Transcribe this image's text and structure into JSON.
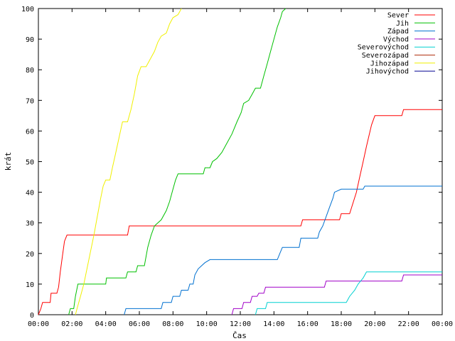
{
  "chart_data": {
    "type": "line",
    "title": "",
    "xlabel": "Čas",
    "ylabel": "krát",
    "xlim": [
      0,
      24
    ],
    "ylim": [
      0,
      100
    ],
    "x_ticks": [
      "00:00",
      "02:00",
      "04:00",
      "06:00",
      "08:00",
      "10:00",
      "12:00",
      "14:00",
      "16:00",
      "18:00",
      "20:00",
      "22:00",
      "00:00"
    ],
    "y_ticks": [
      "0",
      "10",
      "20",
      "30",
      "40",
      "50",
      "60",
      "70",
      "80",
      "90",
      "100"
    ],
    "grid": false,
    "legend_position": "top-right",
    "series": [
      {
        "name": "Sever",
        "color": "#ff0000",
        "points": [
          [
            0,
            0
          ],
          [
            0.15,
            2
          ],
          [
            0.25,
            4
          ],
          [
            0.7,
            4
          ],
          [
            0.75,
            7
          ],
          [
            1.1,
            7
          ],
          [
            1.2,
            9
          ],
          [
            1.3,
            14
          ],
          [
            1.45,
            20
          ],
          [
            1.55,
            24
          ],
          [
            1.7,
            26
          ],
          [
            5.3,
            26
          ],
          [
            5.4,
            29
          ],
          [
            15.6,
            29
          ],
          [
            15.7,
            31
          ],
          [
            17.9,
            31
          ],
          [
            18.0,
            33
          ],
          [
            18.5,
            33
          ],
          [
            18.9,
            40
          ],
          [
            19.1,
            45
          ],
          [
            19.3,
            50
          ],
          [
            19.5,
            55
          ],
          [
            19.8,
            62
          ],
          [
            20.0,
            65
          ],
          [
            21.6,
            65
          ],
          [
            21.7,
            67
          ],
          [
            24,
            67
          ]
        ]
      },
      {
        "name": "Jih",
        "color": "#00c000",
        "points": [
          [
            1.8,
            0
          ],
          [
            1.9,
            2
          ],
          [
            2.1,
            2
          ],
          [
            2.2,
            6
          ],
          [
            2.35,
            10
          ],
          [
            4.0,
            10
          ],
          [
            4.05,
            12
          ],
          [
            5.2,
            12
          ],
          [
            5.3,
            14
          ],
          [
            5.8,
            14
          ],
          [
            5.9,
            16
          ],
          [
            6.3,
            16
          ],
          [
            6.5,
            22
          ],
          [
            6.7,
            26
          ],
          [
            6.9,
            29
          ],
          [
            7.3,
            31
          ],
          [
            7.6,
            34
          ],
          [
            7.8,
            37
          ],
          [
            8.0,
            41
          ],
          [
            8.15,
            44
          ],
          [
            8.3,
            46
          ],
          [
            9.8,
            46
          ],
          [
            9.9,
            48
          ],
          [
            10.2,
            48
          ],
          [
            10.35,
            50
          ],
          [
            10.6,
            51
          ],
          [
            10.9,
            53
          ],
          [
            11.2,
            56
          ],
          [
            11.5,
            59
          ],
          [
            11.8,
            63
          ],
          [
            12.05,
            66
          ],
          [
            12.2,
            69
          ],
          [
            12.5,
            70
          ],
          [
            12.7,
            72
          ],
          [
            12.9,
            74
          ],
          [
            13.2,
            74
          ],
          [
            13.4,
            78
          ],
          [
            13.6,
            82
          ],
          [
            13.8,
            86
          ],
          [
            14.0,
            90
          ],
          [
            14.2,
            94
          ],
          [
            14.4,
            97
          ],
          [
            14.5,
            99
          ],
          [
            14.7,
            100
          ]
        ]
      },
      {
        "name": "Západ",
        "color": "#0070d0",
        "points": [
          [
            5.1,
            0
          ],
          [
            5.2,
            2
          ],
          [
            7.3,
            2
          ],
          [
            7.4,
            4
          ],
          [
            7.9,
            4
          ],
          [
            8.0,
            6
          ],
          [
            8.4,
            6
          ],
          [
            8.5,
            8
          ],
          [
            8.9,
            8
          ],
          [
            9.0,
            10
          ],
          [
            9.2,
            10
          ],
          [
            9.3,
            13
          ],
          [
            9.5,
            15
          ],
          [
            9.7,
            16
          ],
          [
            9.9,
            17
          ],
          [
            10.2,
            18
          ],
          [
            14.2,
            18
          ],
          [
            14.35,
            20
          ],
          [
            14.5,
            22
          ],
          [
            15.5,
            22
          ],
          [
            15.6,
            25
          ],
          [
            16.6,
            25
          ],
          [
            16.7,
            27
          ],
          [
            16.9,
            29
          ],
          [
            17.1,
            32
          ],
          [
            17.3,
            35
          ],
          [
            17.5,
            38
          ],
          [
            17.6,
            40
          ],
          [
            18.0,
            41
          ],
          [
            19.3,
            41
          ],
          [
            19.4,
            42
          ],
          [
            24,
            42
          ]
        ]
      },
      {
        "name": "Východ",
        "color": "#a000c8",
        "points": [
          [
            11.5,
            0
          ],
          [
            11.6,
            2
          ],
          [
            12.1,
            2
          ],
          [
            12.2,
            4
          ],
          [
            12.6,
            4
          ],
          [
            12.7,
            6
          ],
          [
            13.0,
            6
          ],
          [
            13.1,
            7
          ],
          [
            13.4,
            7
          ],
          [
            13.5,
            9
          ],
          [
            17.0,
            9
          ],
          [
            17.1,
            11
          ],
          [
            21.6,
            11
          ],
          [
            21.7,
            13
          ],
          [
            24,
            13
          ]
        ]
      },
      {
        "name": "Severovýchod",
        "color": "#00d0d0",
        "points": [
          [
            12.9,
            0
          ],
          [
            13.0,
            2
          ],
          [
            13.5,
            2
          ],
          [
            13.6,
            4
          ],
          [
            18.3,
            4
          ],
          [
            18.5,
            6
          ],
          [
            18.8,
            8
          ],
          [
            19.0,
            10
          ],
          [
            19.3,
            12
          ],
          [
            19.5,
            14
          ],
          [
            24,
            14
          ]
        ]
      },
      {
        "name": "Severozápad",
        "color": "#b03010",
        "points": []
      },
      {
        "name": "Jihozápad",
        "color": "#f0f000",
        "points": [
          [
            2.2,
            0
          ],
          [
            2.3,
            2
          ],
          [
            2.5,
            6
          ],
          [
            2.7,
            10
          ],
          [
            3.0,
            18
          ],
          [
            3.3,
            26
          ],
          [
            3.5,
            32
          ],
          [
            3.7,
            38
          ],
          [
            3.85,
            42
          ],
          [
            4.0,
            44
          ],
          [
            4.25,
            44
          ],
          [
            4.4,
            48
          ],
          [
            4.6,
            53
          ],
          [
            4.8,
            58
          ],
          [
            5.0,
            63
          ],
          [
            5.3,
            63
          ],
          [
            5.5,
            67
          ],
          [
            5.7,
            72
          ],
          [
            5.9,
            78
          ],
          [
            6.1,
            81
          ],
          [
            6.4,
            81
          ],
          [
            6.6,
            83
          ],
          [
            6.9,
            86
          ],
          [
            7.1,
            89
          ],
          [
            7.3,
            91
          ],
          [
            7.6,
            92
          ],
          [
            7.8,
            95
          ],
          [
            8.0,
            97
          ],
          [
            8.3,
            98
          ],
          [
            8.5,
            100
          ]
        ]
      },
      {
        "name": "Jihovýchod",
        "color": "#000090",
        "points": []
      }
    ]
  }
}
